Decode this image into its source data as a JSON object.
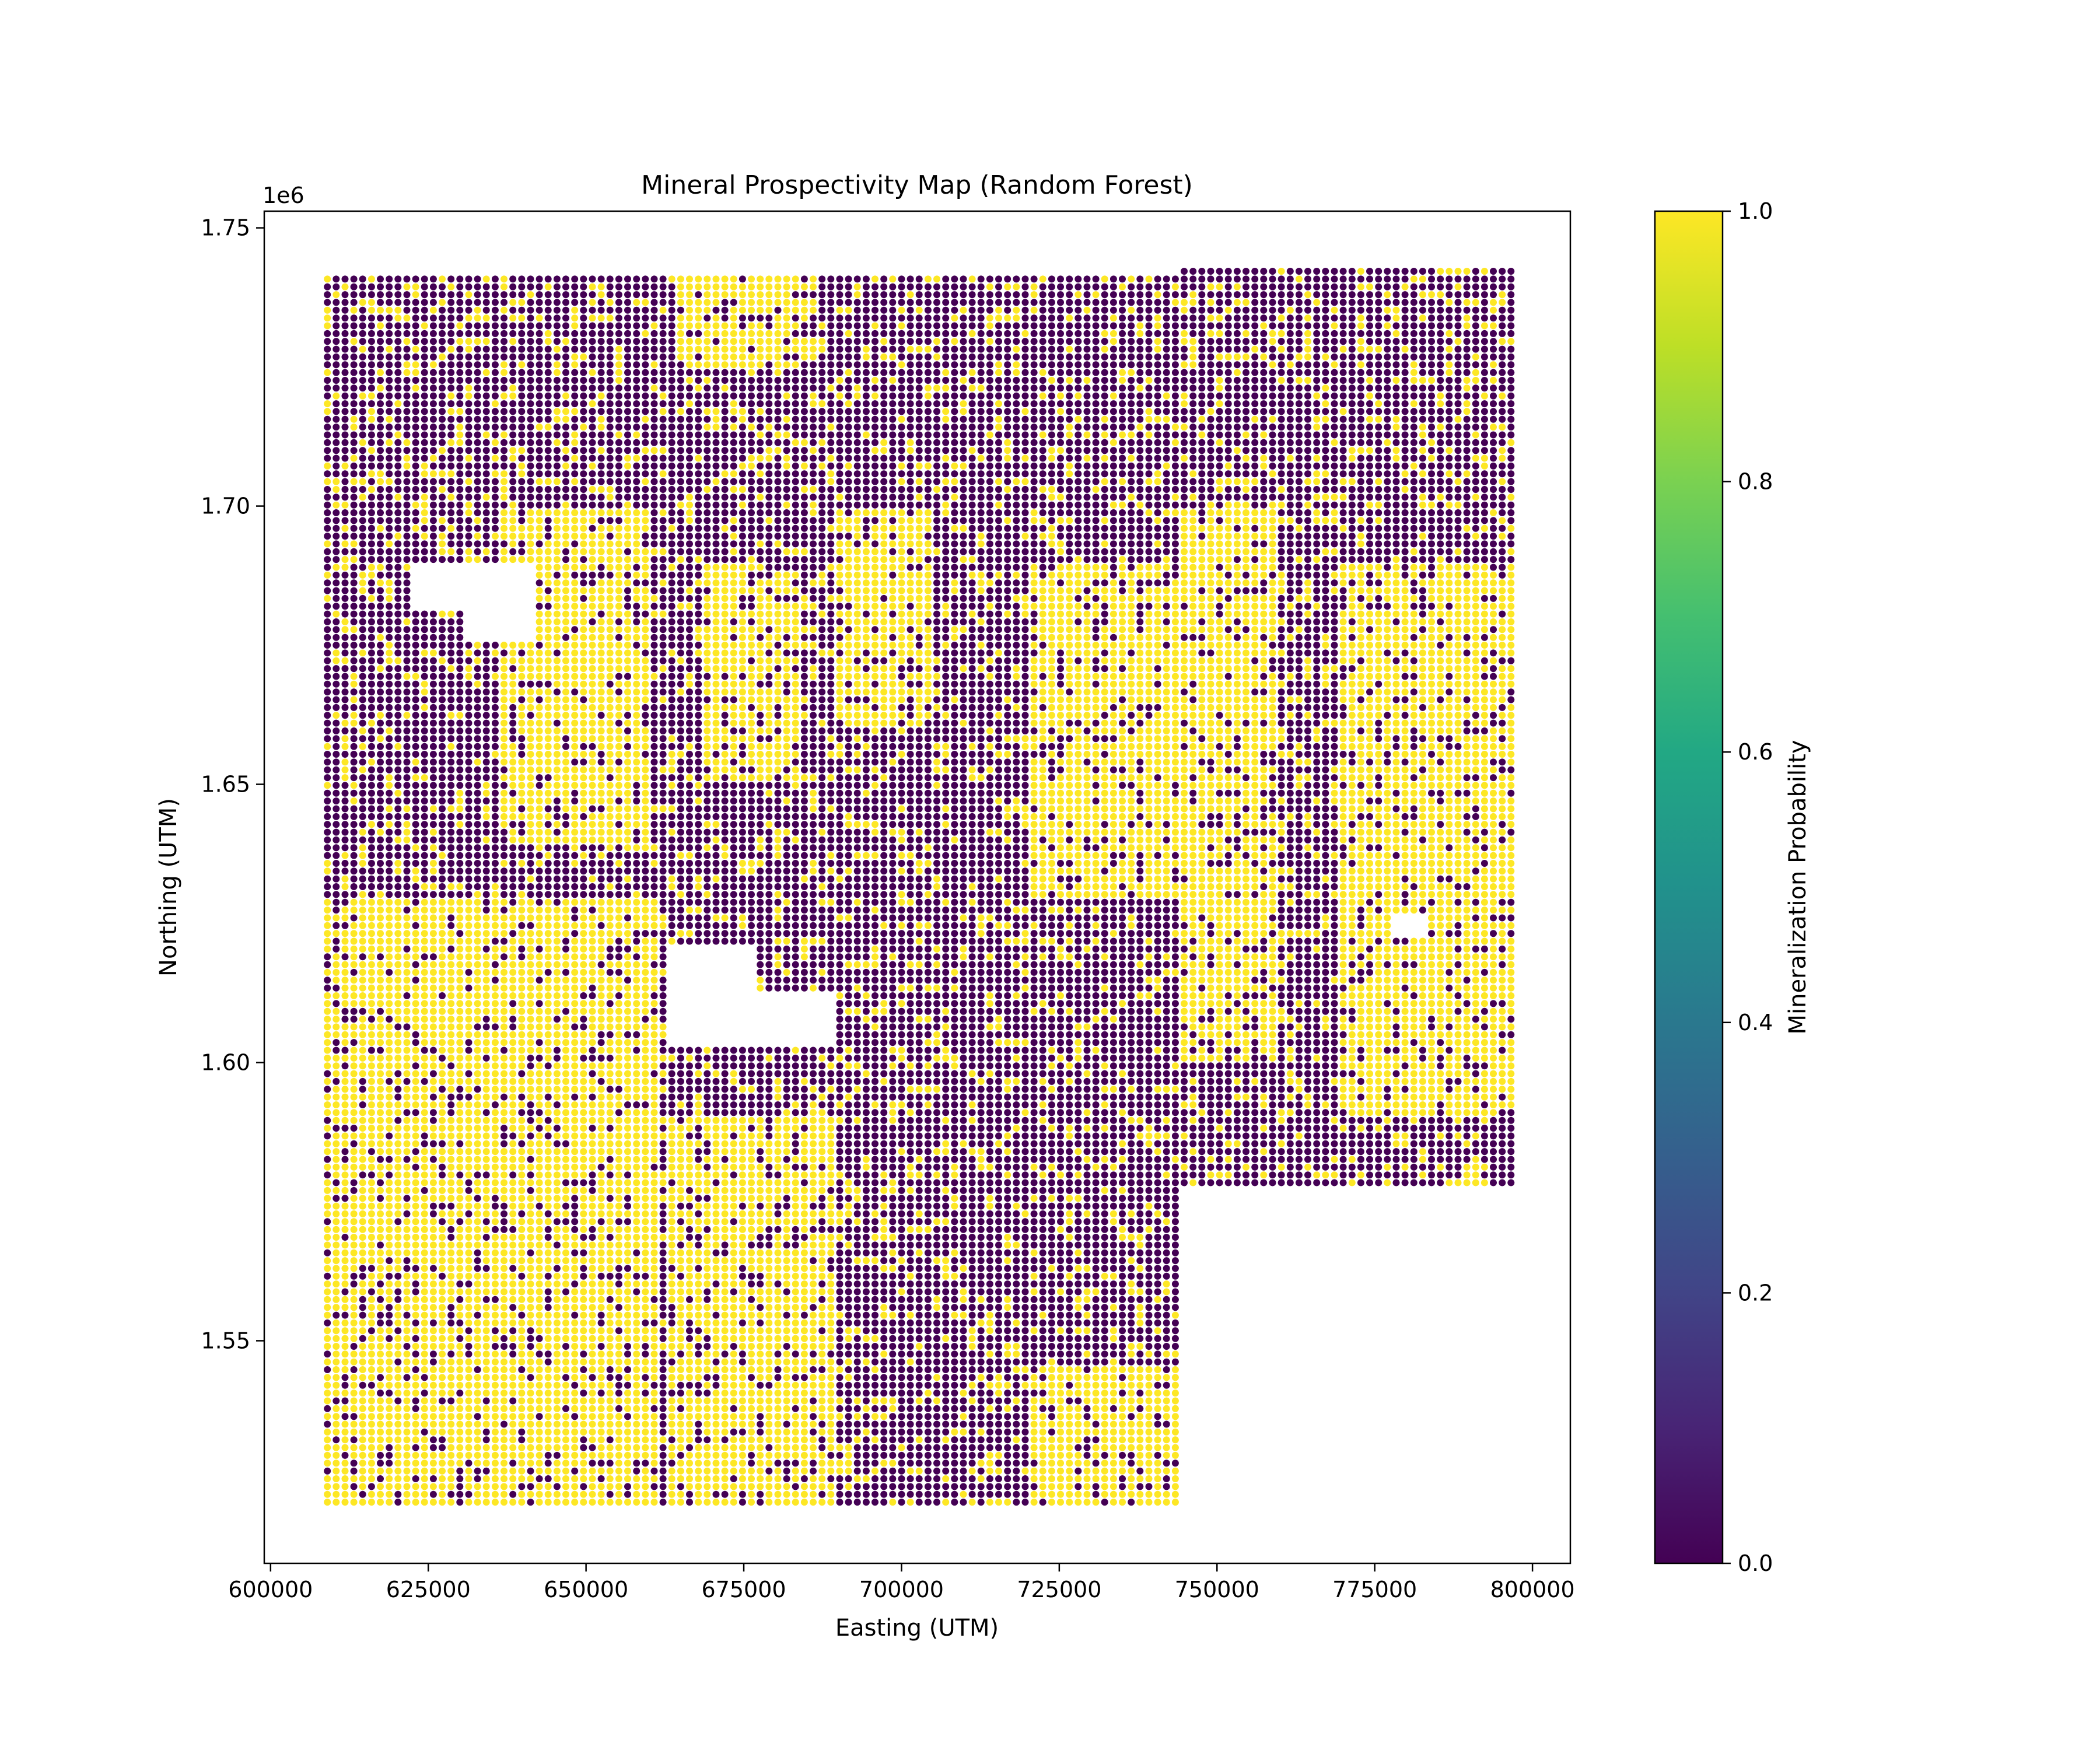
{
  "chart_data": {
    "type": "scatter",
    "title": "Mineral Prospectivity Map (Random Forest)",
    "xlabel": "Easting (UTM)",
    "ylabel": "Northing (UTM)",
    "xlim": [
      599000,
      806000
    ],
    "ylim": [
      1510000,
      1753000
    ],
    "x_ticks": [
      {
        "value": 600000,
        "label": "600000"
      },
      {
        "value": 625000,
        "label": "625000"
      },
      {
        "value": 650000,
        "label": "650000"
      },
      {
        "value": 675000,
        "label": "675000"
      },
      {
        "value": 700000,
        "label": "700000"
      },
      {
        "value": 725000,
        "label": "725000"
      },
      {
        "value": 750000,
        "label": "750000"
      },
      {
        "value": 775000,
        "label": "775000"
      },
      {
        "value": 800000,
        "label": "800000"
      }
    ],
    "y_ticks": [
      {
        "value": 1550000,
        "label": "1.55"
      },
      {
        "value": 1600000,
        "label": "1.60"
      },
      {
        "value": 1650000,
        "label": "1.65"
      },
      {
        "value": 1700000,
        "label": "1.70"
      },
      {
        "value": 1750000,
        "label": "1.75"
      }
    ],
    "y_offset_label": "1e6",
    "grid": false,
    "colormap": "viridis",
    "colorbar": {
      "label": "Mineralization Probability",
      "range": [
        0,
        1
      ],
      "ticks": [
        {
          "value": 0.0,
          "label": "0.0"
        },
        {
          "value": 0.2,
          "label": "0.2"
        },
        {
          "value": 0.4,
          "label": "0.4"
        },
        {
          "value": 0.6,
          "label": "0.6"
        },
        {
          "value": 0.8,
          "label": "0.8"
        },
        {
          "value": 1.0,
          "label": "1.0"
        }
      ]
    },
    "colors": {
      "low": "#440154",
      "high": "#fde725"
    },
    "grid_points": {
      "x_start": 609000,
      "x_step": 1400,
      "y_start": 1521000,
      "y_step": 1400,
      "regions": [
        {
          "x": [
            609000,
            744000
          ],
          "y": [
            1521000,
            1741000
          ]
        },
        {
          "x": [
            744000,
            797000
          ],
          "y": [
            1578000,
            1743000
          ]
        }
      ],
      "gaps": [
        {
          "x": [
            631000,
            642000
          ],
          "y": [
            1676000,
            1690000
          ]
        },
        {
          "x": [
            622000,
            633000
          ],
          "y": [
            1682000,
            1690000
          ]
        },
        {
          "x": [
            663000,
            677000
          ],
          "y": [
            1603000,
            1621000
          ]
        },
        {
          "x": [
            677000,
            689000
          ],
          "y": [
            1603000,
            1613000
          ]
        },
        {
          "x": [
            778000,
            783000
          ],
          "y": [
            1623000,
            1627000
          ]
        }
      ],
      "high_zones": [
        {
          "x": [
            609000,
            662000
          ],
          "y": [
            1521000,
            1630000
          ]
        },
        {
          "x": [
            637000,
            660000
          ],
          "y": [
            1640000,
            1700000
          ]
        },
        {
          "x": [
            664000,
            687000
          ],
          "y": [
            1725000,
            1741000
          ]
        },
        {
          "x": [
            669000,
            684000
          ],
          "y": [
            1650000,
            1690000
          ]
        },
        {
          "x": [
            663000,
            690000
          ],
          "y": [
            1521000,
            1590000
          ]
        },
        {
          "x": [
            690000,
            705000
          ],
          "y": [
            1660000,
            1700000
          ]
        },
        {
          "x": [
            720000,
            744000
          ],
          "y": [
            1630000,
            1690000
          ]
        },
        {
          "x": [
            744000,
            760000
          ],
          "y": [
            1600000,
            1700000
          ]
        },
        {
          "x": [
            770000,
            797000
          ],
          "y": [
            1590000,
            1690000
          ]
        },
        {
          "x": [
            720000,
            744000
          ],
          "y": [
            1521000,
            1545000
          ]
        }
      ]
    }
  }
}
